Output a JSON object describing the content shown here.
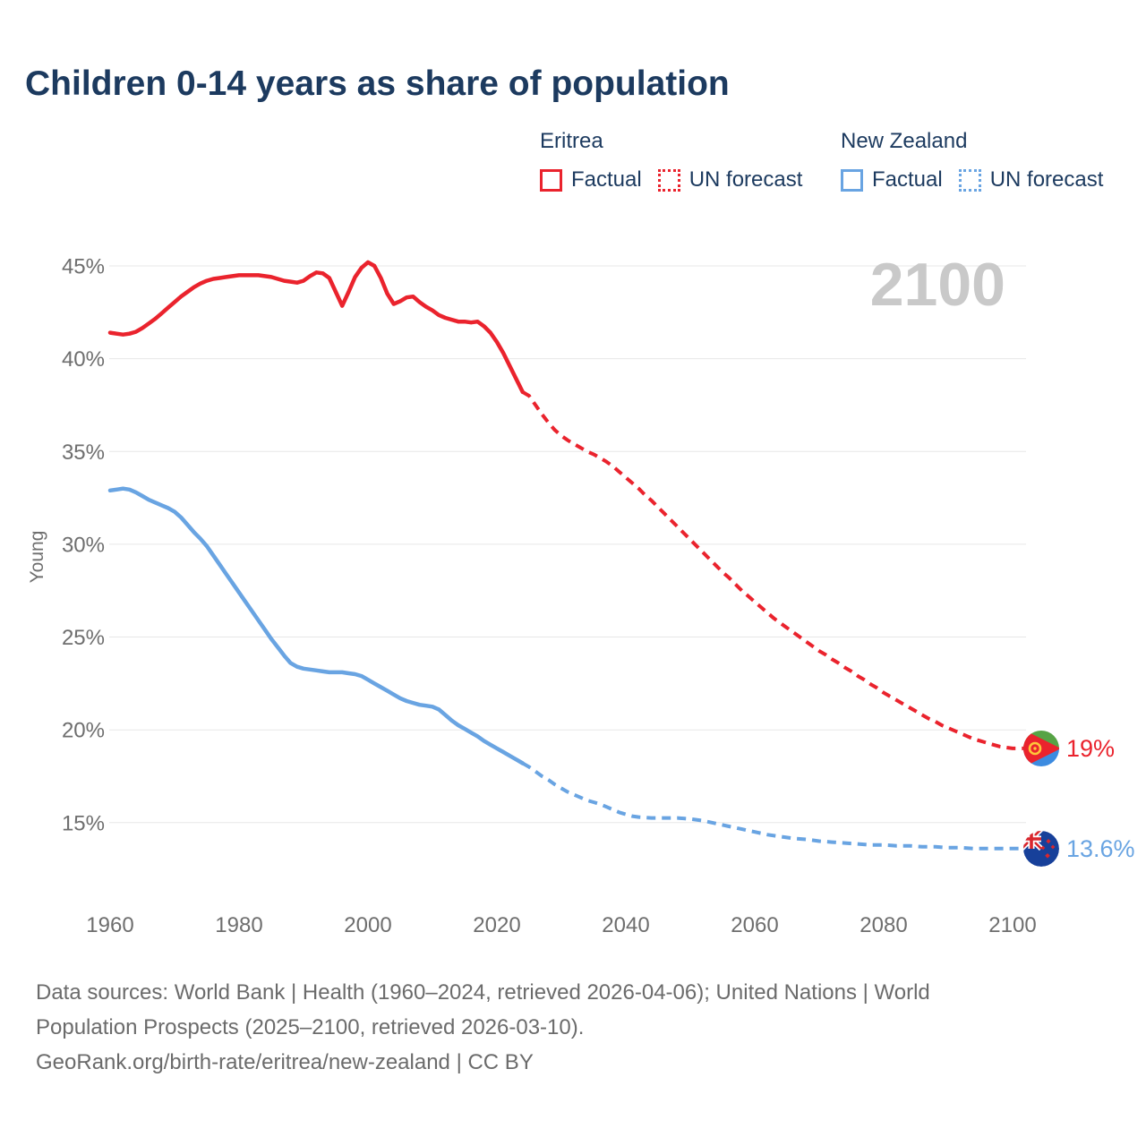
{
  "title": "Children 0-14 years as share of population",
  "watermark": "2100",
  "colors": {
    "eritrea_red": "#ea232d",
    "new_zealand_blue": "#69a4e2",
    "title_navy": "#1c3a5f",
    "axis_gray": "#6e6e6e",
    "watermark_gray": "#c9c9c9",
    "gridline_gray": "#e7e7e7",
    "footer_gray": "#6b6b6b"
  },
  "legend": {
    "groups": [
      {
        "name": "Eritrea",
        "color": "#ea232d",
        "items": [
          {
            "label": "Factual",
            "style": "solid"
          },
          {
            "label": "UN forecast",
            "style": "dotted"
          }
        ]
      },
      {
        "name": "New Zealand",
        "color": "#69a4e2",
        "items": [
          {
            "label": "Factual",
            "style": "solid"
          },
          {
            "label": "UN forecast",
            "style": "dotted"
          }
        ]
      }
    ]
  },
  "end_labels": [
    {
      "text": "19%",
      "color": "#ea232d",
      "flag": "eritrea",
      "year": 2100
    },
    {
      "text": "13.6%",
      "color": "#69a4e2",
      "flag": "new-zealand",
      "year": 2100
    }
  ],
  "footer": {
    "line1": "Data sources: World Bank | Health (1960–2024, retrieved 2026-04-06); United Nations | World",
    "line2": "Population Prospects (2025–2100, retrieved 2026-03-10).",
    "line3": "GeoRank.org/birth-rate/eritrea/new-zealand | CC BY"
  },
  "chart_data": {
    "type": "line",
    "title": "Children 0-14 years as share of population",
    "xlabel": "",
    "ylabel": "Young",
    "xlim": [
      1960,
      2100
    ],
    "ylim": [
      13,
      46
    ],
    "grid": "horizontal",
    "legend_position": "top-right",
    "x_ticks": [
      1960,
      1980,
      2000,
      2020,
      2040,
      2060,
      2080,
      2100
    ],
    "y_ticks": [
      {
        "value": 45,
        "label": "45%"
      },
      {
        "value": 40,
        "label": "40%"
      },
      {
        "value": 35,
        "label": "35%"
      },
      {
        "value": 30,
        "label": "30%"
      },
      {
        "value": 25,
        "label": "25%"
      },
      {
        "value": 20,
        "label": "20%"
      },
      {
        "value": 15,
        "label": "15%"
      }
    ],
    "series": [
      {
        "name": "Eritrea Factual",
        "color": "#ea232d",
        "dash": false,
        "points": [
          [
            1960,
            41.4
          ],
          [
            1961,
            41.35
          ],
          [
            1962,
            41.3
          ],
          [
            1963,
            41.35
          ],
          [
            1964,
            41.45
          ],
          [
            1965,
            41.65
          ],
          [
            1966,
            41.9
          ],
          [
            1967,
            42.15
          ],
          [
            1968,
            42.45
          ],
          [
            1969,
            42.75
          ],
          [
            1970,
            43.05
          ],
          [
            1971,
            43.35
          ],
          [
            1972,
            43.6
          ],
          [
            1973,
            43.85
          ],
          [
            1974,
            44.05
          ],
          [
            1975,
            44.2
          ],
          [
            1976,
            44.3
          ],
          [
            1977,
            44.35
          ],
          [
            1978,
            44.4
          ],
          [
            1979,
            44.45
          ],
          [
            1980,
            44.5
          ],
          [
            1981,
            44.5
          ],
          [
            1982,
            44.5
          ],
          [
            1983,
            44.5
          ],
          [
            1984,
            44.45
          ],
          [
            1985,
            44.4
          ],
          [
            1986,
            44.3
          ],
          [
            1987,
            44.2
          ],
          [
            1988,
            44.15
          ],
          [
            1989,
            44.1
          ],
          [
            1990,
            44.2
          ],
          [
            1991,
            44.45
          ],
          [
            1992,
            44.65
          ],
          [
            1993,
            44.6
          ],
          [
            1994,
            44.35
          ],
          [
            1995,
            43.6
          ],
          [
            1996,
            42.85
          ],
          [
            1997,
            43.6
          ],
          [
            1998,
            44.4
          ],
          [
            1999,
            44.9
          ],
          [
            2000,
            45.2
          ],
          [
            2001,
            45.0
          ],
          [
            2002,
            44.35
          ],
          [
            2003,
            43.5
          ],
          [
            2004,
            42.95
          ],
          [
            2005,
            43.1
          ],
          [
            2006,
            43.3
          ],
          [
            2007,
            43.35
          ],
          [
            2008,
            43.05
          ],
          [
            2009,
            42.8
          ],
          [
            2010,
            42.6
          ],
          [
            2011,
            42.35
          ],
          [
            2012,
            42.2
          ],
          [
            2013,
            42.1
          ],
          [
            2014,
            42.0
          ],
          [
            2015,
            42.0
          ],
          [
            2016,
            41.95
          ],
          [
            2017,
            42.0
          ],
          [
            2018,
            41.75
          ],
          [
            2019,
            41.4
          ],
          [
            2020,
            40.9
          ],
          [
            2021,
            40.3
          ],
          [
            2022,
            39.6
          ],
          [
            2023,
            38.9
          ],
          [
            2024,
            38.2
          ]
        ]
      },
      {
        "name": "Eritrea UN forecast",
        "color": "#ea232d",
        "dash": true,
        "points": [
          [
            2024,
            38.2
          ],
          [
            2025,
            38.0
          ],
          [
            2026,
            37.5
          ],
          [
            2027,
            37.0
          ],
          [
            2028,
            36.55
          ],
          [
            2029,
            36.15
          ],
          [
            2030,
            35.85
          ],
          [
            2031,
            35.6
          ],
          [
            2032,
            35.4
          ],
          [
            2033,
            35.2
          ],
          [
            2034,
            35.0
          ],
          [
            2035,
            34.85
          ],
          [
            2036,
            34.65
          ],
          [
            2037,
            34.45
          ],
          [
            2038,
            34.2
          ],
          [
            2039,
            33.9
          ],
          [
            2040,
            33.6
          ],
          [
            2041,
            33.3
          ],
          [
            2042,
            33.0
          ],
          [
            2043,
            32.65
          ],
          [
            2044,
            32.35
          ],
          [
            2045,
            32.0
          ],
          [
            2046,
            31.65
          ],
          [
            2047,
            31.3
          ],
          [
            2048,
            30.95
          ],
          [
            2049,
            30.6
          ],
          [
            2050,
            30.25
          ],
          [
            2051,
            29.9
          ],
          [
            2052,
            29.55
          ],
          [
            2053,
            29.2
          ],
          [
            2054,
            28.85
          ],
          [
            2055,
            28.5
          ],
          [
            2056,
            28.2
          ],
          [
            2057,
            27.85
          ],
          [
            2058,
            27.5
          ],
          [
            2059,
            27.2
          ],
          [
            2060,
            26.9
          ],
          [
            2061,
            26.6
          ],
          [
            2062,
            26.3
          ],
          [
            2063,
            26.0
          ],
          [
            2064,
            25.75
          ],
          [
            2065,
            25.5
          ],
          [
            2066,
            25.25
          ],
          [
            2067,
            25.0
          ],
          [
            2068,
            24.75
          ],
          [
            2069,
            24.5
          ],
          [
            2070,
            24.25
          ],
          [
            2071,
            24.05
          ],
          [
            2072,
            23.8
          ],
          [
            2073,
            23.6
          ],
          [
            2074,
            23.35
          ],
          [
            2075,
            23.15
          ],
          [
            2076,
            22.9
          ],
          [
            2077,
            22.7
          ],
          [
            2078,
            22.45
          ],
          [
            2079,
            22.25
          ],
          [
            2080,
            22.0
          ],
          [
            2081,
            21.8
          ],
          [
            2082,
            21.6
          ],
          [
            2083,
            21.4
          ],
          [
            2084,
            21.2
          ],
          [
            2085,
            21.0
          ],
          [
            2086,
            20.8
          ],
          [
            2087,
            20.6
          ],
          [
            2088,
            20.45
          ],
          [
            2089,
            20.25
          ],
          [
            2090,
            20.1
          ],
          [
            2091,
            19.95
          ],
          [
            2092,
            19.8
          ],
          [
            2093,
            19.65
          ],
          [
            2094,
            19.5
          ],
          [
            2095,
            19.4
          ],
          [
            2096,
            19.3
          ],
          [
            2097,
            19.2
          ],
          [
            2098,
            19.1
          ],
          [
            2099,
            19.05
          ],
          [
            2100,
            19.0
          ]
        ]
      },
      {
        "name": "New Zealand Factual",
        "color": "#69a4e2",
        "dash": false,
        "points": [
          [
            1960,
            32.9
          ],
          [
            1961,
            32.95
          ],
          [
            1962,
            33.0
          ],
          [
            1963,
            32.95
          ],
          [
            1964,
            32.8
          ],
          [
            1965,
            32.6
          ],
          [
            1966,
            32.4
          ],
          [
            1967,
            32.25
          ],
          [
            1968,
            32.1
          ],
          [
            1969,
            31.95
          ],
          [
            1970,
            31.75
          ],
          [
            1971,
            31.45
          ],
          [
            1972,
            31.05
          ],
          [
            1973,
            30.65
          ],
          [
            1974,
            30.3
          ],
          [
            1975,
            29.9
          ],
          [
            1976,
            29.4
          ],
          [
            1977,
            28.9
          ],
          [
            1978,
            28.4
          ],
          [
            1979,
            27.9
          ],
          [
            1980,
            27.4
          ],
          [
            1981,
            26.9
          ],
          [
            1982,
            26.4
          ],
          [
            1983,
            25.9
          ],
          [
            1984,
            25.4
          ],
          [
            1985,
            24.9
          ],
          [
            1986,
            24.45
          ],
          [
            1987,
            24.0
          ],
          [
            1988,
            23.6
          ],
          [
            1989,
            23.4
          ],
          [
            1990,
            23.3
          ],
          [
            1991,
            23.25
          ],
          [
            1992,
            23.2
          ],
          [
            1993,
            23.15
          ],
          [
            1994,
            23.1
          ],
          [
            1995,
            23.1
          ],
          [
            1996,
            23.1
          ],
          [
            1997,
            23.05
          ],
          [
            1998,
            23.0
          ],
          [
            1999,
            22.9
          ],
          [
            2000,
            22.7
          ],
          [
            2001,
            22.5
          ],
          [
            2002,
            22.3
          ],
          [
            2003,
            22.1
          ],
          [
            2004,
            21.9
          ],
          [
            2005,
            21.7
          ],
          [
            2006,
            21.55
          ],
          [
            2007,
            21.45
          ],
          [
            2008,
            21.35
          ],
          [
            2009,
            21.3
          ],
          [
            2010,
            21.25
          ],
          [
            2011,
            21.1
          ],
          [
            2012,
            20.8
          ],
          [
            2013,
            20.5
          ],
          [
            2014,
            20.25
          ],
          [
            2015,
            20.05
          ],
          [
            2016,
            19.85
          ],
          [
            2017,
            19.65
          ],
          [
            2018,
            19.4
          ],
          [
            2019,
            19.2
          ],
          [
            2020,
            19.0
          ],
          [
            2021,
            18.8
          ],
          [
            2022,
            18.6
          ],
          [
            2023,
            18.4
          ],
          [
            2024,
            18.2
          ]
        ]
      },
      {
        "name": "New Zealand UN forecast",
        "color": "#69a4e2",
        "dash": true,
        "points": [
          [
            2024,
            18.2
          ],
          [
            2025,
            18.0
          ],
          [
            2026,
            17.75
          ],
          [
            2027,
            17.5
          ],
          [
            2028,
            17.3
          ],
          [
            2029,
            17.05
          ],
          [
            2030,
            16.85
          ],
          [
            2031,
            16.65
          ],
          [
            2032,
            16.5
          ],
          [
            2033,
            16.35
          ],
          [
            2034,
            16.2
          ],
          [
            2035,
            16.1
          ],
          [
            2036,
            16.0
          ],
          [
            2037,
            15.85
          ],
          [
            2038,
            15.7
          ],
          [
            2039,
            15.55
          ],
          [
            2040,
            15.45
          ],
          [
            2041,
            15.35
          ],
          [
            2042,
            15.3
          ],
          [
            2044,
            15.25
          ],
          [
            2046,
            15.25
          ],
          [
            2048,
            15.25
          ],
          [
            2050,
            15.2
          ],
          [
            2052,
            15.1
          ],
          [
            2054,
            14.95
          ],
          [
            2056,
            14.8
          ],
          [
            2058,
            14.65
          ],
          [
            2060,
            14.5
          ],
          [
            2062,
            14.35
          ],
          [
            2064,
            14.25
          ],
          [
            2066,
            14.15
          ],
          [
            2068,
            14.1
          ],
          [
            2070,
            14.0
          ],
          [
            2072,
            13.95
          ],
          [
            2074,
            13.9
          ],
          [
            2076,
            13.85
          ],
          [
            2078,
            13.8
          ],
          [
            2080,
            13.8
          ],
          [
            2082,
            13.75
          ],
          [
            2084,
            13.75
          ],
          [
            2086,
            13.7
          ],
          [
            2088,
            13.7
          ],
          [
            2090,
            13.65
          ],
          [
            2092,
            13.65
          ],
          [
            2094,
            13.6
          ],
          [
            2096,
            13.6
          ],
          [
            2098,
            13.6
          ],
          [
            2100,
            13.6
          ]
        ]
      }
    ]
  }
}
